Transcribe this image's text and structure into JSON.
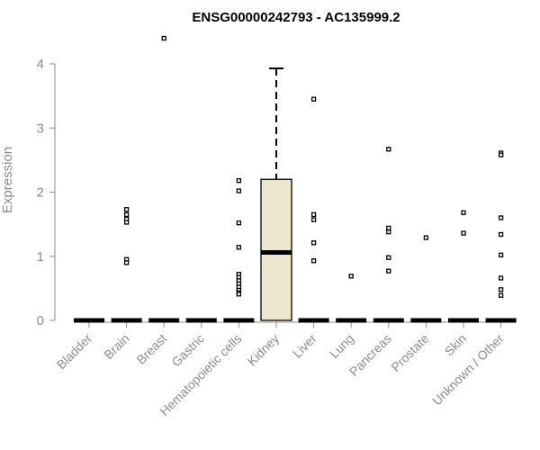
{
  "chart_data": {
    "type": "boxplot",
    "title": "ENSG00000242793 - AC135999.2",
    "ylabel": "Expression",
    "xlabel": "",
    "ylim": [
      0,
      4
    ],
    "yticks": [
      0,
      1,
      2,
      3,
      4
    ],
    "grid": false,
    "colors": {
      "box_fill": "#ede6ce",
      "stroke": "#000000",
      "axis": "#8c8c8c"
    },
    "categories": [
      "Bladder",
      "Brain",
      "Breast",
      "Gastric",
      "Hematopoietic cells",
      "Kidney",
      "Liver",
      "Lung",
      "Pancreas",
      "Prostate",
      "Skin",
      "Unknown / Other"
    ],
    "boxes": [
      {
        "category": "Bladder",
        "q1": 0,
        "median": 0,
        "q3": 0,
        "whisker_low": 0,
        "whisker_high": 0,
        "outliers": []
      },
      {
        "category": "Brain",
        "q1": 0,
        "median": 0,
        "q3": 0,
        "whisker_low": 0,
        "whisker_high": 0,
        "outliers": [
          1.73,
          1.65,
          1.58,
          1.53,
          0.95,
          0.9
        ]
      },
      {
        "category": "Breast",
        "q1": 0,
        "median": 0,
        "q3": 0,
        "whisker_low": 0,
        "whisker_high": 0,
        "outliers": [
          4.4
        ]
      },
      {
        "category": "Gastric",
        "q1": 0,
        "median": 0,
        "q3": 0,
        "whisker_low": 0,
        "whisker_high": 0,
        "outliers": []
      },
      {
        "category": "Hematopoietic cells",
        "q1": 0,
        "median": 0,
        "q3": 0,
        "whisker_low": 0,
        "whisker_high": 0,
        "outliers": [
          2.18,
          2.02,
          1.52,
          1.14,
          0.72,
          0.67,
          0.62,
          0.57,
          0.52,
          0.47,
          0.43,
          0.41
        ]
      },
      {
        "category": "Kidney",
        "q1": 0,
        "median": 1.06,
        "q3": 2.2,
        "whisker_low": 0,
        "whisker_high": 3.93,
        "outliers": []
      },
      {
        "category": "Liver",
        "q1": 0,
        "median": 0,
        "q3": 0,
        "whisker_low": 0,
        "whisker_high": 0,
        "outliers": [
          3.45,
          1.65,
          1.57,
          1.21,
          0.93
        ]
      },
      {
        "category": "Lung",
        "q1": 0,
        "median": 0,
        "q3": 0,
        "whisker_low": 0,
        "whisker_high": 0,
        "outliers": [
          0.69
        ]
      },
      {
        "category": "Pancreas",
        "q1": 0,
        "median": 0,
        "q3": 0,
        "whisker_low": 0,
        "whisker_high": 0,
        "outliers": [
          2.67,
          1.44,
          1.38,
          0.98,
          0.77
        ]
      },
      {
        "category": "Prostate",
        "q1": 0,
        "median": 0,
        "q3": 0,
        "whisker_low": 0,
        "whisker_high": 0,
        "outliers": [
          1.29
        ]
      },
      {
        "category": "Skin",
        "q1": 0,
        "median": 0,
        "q3": 0,
        "whisker_low": 0,
        "whisker_high": 0,
        "outliers": [
          1.68,
          1.36
        ]
      },
      {
        "category": "Unknown / Other",
        "q1": 0,
        "median": 0,
        "q3": 0,
        "whisker_low": 0,
        "whisker_high": 0,
        "outliers": [
          2.61,
          2.58,
          1.6,
          1.34,
          1.02,
          0.66,
          0.48,
          0.39
        ]
      }
    ]
  }
}
